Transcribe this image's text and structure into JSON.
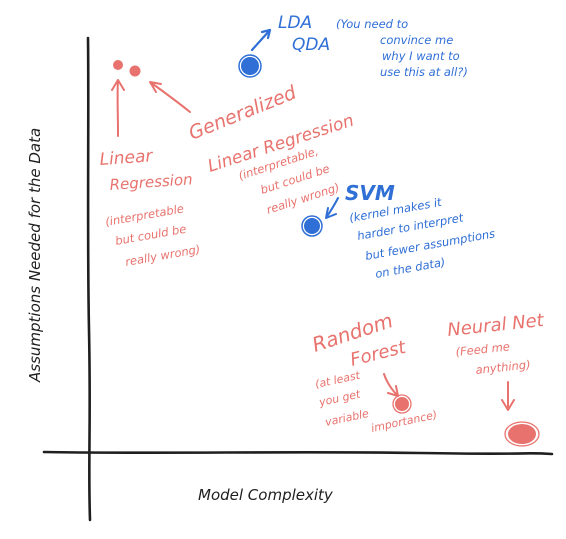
{
  "colors": {
    "red": "#e8736e",
    "blue": "#2f6fd6",
    "ink": "#1f1f1f",
    "background": "#ffffff"
  },
  "axes": {
    "x_label": "Model Complexity",
    "y_label": "Assumptions Needed for the Data"
  },
  "models": {
    "lda": {
      "title_line1": "LDA",
      "title_line2": "QDA",
      "note": [
        "(You need to",
        "convince me",
        "why I want to",
        "use this at all?)"
      ]
    },
    "linear": {
      "title_line1": "Linear",
      "title_line2": "Regression",
      "note": [
        "(interpretable",
        "but could be",
        "really wrong)"
      ]
    },
    "glm": {
      "title_line1": "Generalized",
      "title_line2": "Linear Regression",
      "note": [
        "(interpretable,",
        "but could be",
        "really wrong)"
      ]
    },
    "svm": {
      "title": "SVM",
      "note": [
        "(kernel makes it",
        "harder to interpret",
        "but fewer assumptions",
        "on the data)"
      ]
    },
    "rf": {
      "title_line1": "Random",
      "title_line2": "Forest",
      "note": [
        "(at least",
        "you get",
        "variable",
        "importance)"
      ]
    },
    "nn": {
      "title": "Neural Net",
      "note": [
        "(Feed me",
        "anything)"
      ]
    }
  }
}
